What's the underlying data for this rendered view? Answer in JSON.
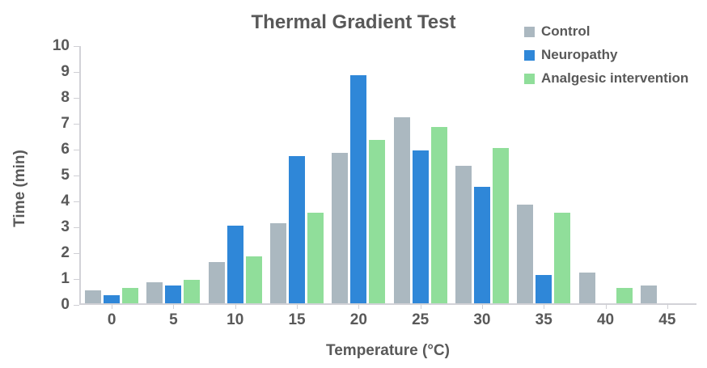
{
  "chart_data": {
    "type": "bar",
    "title": "Thermal Gradient Test",
    "xlabel": "Temperature (°C)",
    "ylabel": "Time (min)",
    "categories": [
      "0",
      "5",
      "10",
      "15",
      "20",
      "25",
      "30",
      "35",
      "40",
      "45"
    ],
    "series": [
      {
        "name": "Control",
        "color": "#abb8c0",
        "values": [
          0.5,
          0.8,
          1.6,
          3.1,
          5.8,
          7.2,
          5.3,
          3.8,
          1.2,
          0.7
        ]
      },
      {
        "name": "Neuropathy",
        "color": "#2f87d8",
        "values": [
          0.3,
          0.7,
          3.0,
          5.7,
          8.8,
          5.9,
          4.5,
          1.1,
          0,
          0
        ]
      },
      {
        "name": "Analgesic intervention",
        "color": "#90de9a",
        "values": [
          0.6,
          0.9,
          1.8,
          3.5,
          6.3,
          6.8,
          6.0,
          3.5,
          0.6,
          0
        ]
      }
    ],
    "ylim": [
      0,
      10
    ],
    "ytick_step": 1,
    "grid": false,
    "legend_position": "top-right",
    "colors": {
      "text": "#595959",
      "axis_line": "#d2d2d7",
      "tick_line": "#cfcfd4",
      "background": "#ffffff"
    }
  }
}
